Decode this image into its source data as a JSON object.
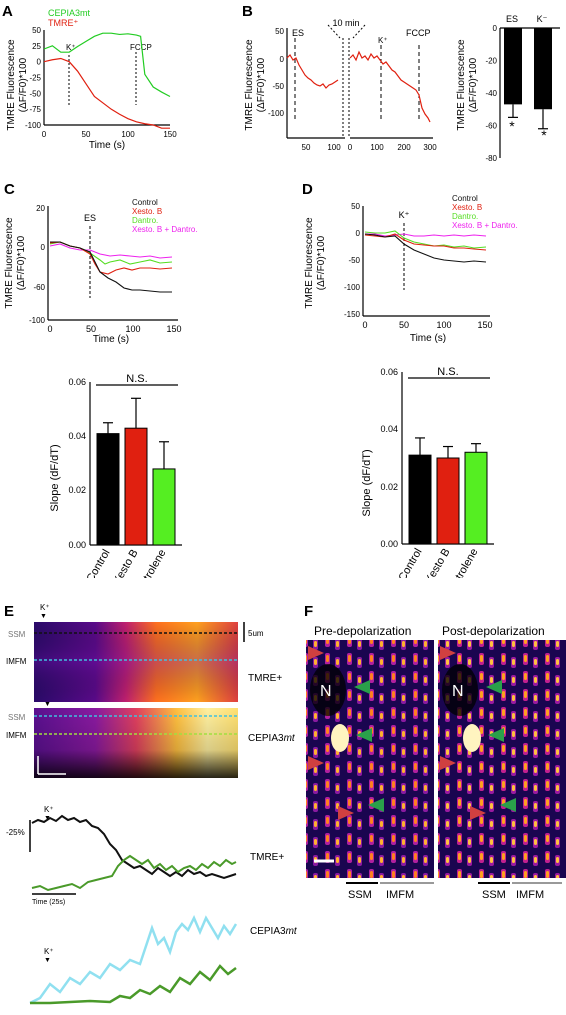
{
  "panels": {
    "A": {
      "letter": "A",
      "ylabel": [
        "TMRE Fluorescence",
        "(ΔF/F0)*100"
      ],
      "xlabel": "Time (s)",
      "xticks": [
        "0",
        "50",
        "100",
        "150"
      ],
      "yticks": [
        "50",
        "25",
        "0",
        "-25",
        "-50",
        "-75",
        "-100"
      ],
      "legend": [
        {
          "name": "CEPIA3mt",
          "color": "#22cc22"
        },
        {
          "name": "TMRE⁺",
          "color": "#e02010"
        }
      ],
      "markers": [
        "K⁺",
        "FCCP"
      ]
    },
    "B": {
      "letter": "B",
      "ylabel": [
        "TMRE Fluorescence",
        "(ΔF/F0)*100"
      ],
      "xticks_left": [
        "50",
        "100"
      ],
      "xticks_right": [
        "0",
        "100",
        "200",
        "300"
      ],
      "yticks": [
        "50",
        "0",
        "-50",
        "-100"
      ],
      "break_label": "10 min",
      "markers": [
        "ES",
        "K⁺",
        "FCCP"
      ],
      "bar": {
        "ylabel": [
          "TMRE Fluorescence",
          "(ΔF/F0)*100"
        ],
        "categories": [
          "ES",
          "K⁻"
        ],
        "yticks": [
          "0",
          "-20",
          "-40",
          "-60",
          "-80"
        ],
        "star": "*"
      }
    },
    "C": {
      "letter": "C",
      "ylabel": [
        "TMRE Fluorescence",
        "(ΔF/F0)*100"
      ],
      "xlabel": "Time (s)",
      "xticks": [
        "0",
        "50",
        "100",
        "150"
      ],
      "yticks": [
        "20",
        "0",
        "-60",
        "-100"
      ],
      "marker": "ES",
      "legend": [
        {
          "name": "Control",
          "color": "#111111"
        },
        {
          "name": "Xesto. B",
          "color": "#e02010"
        },
        {
          "name": "Dantro.",
          "color": "#55dd22"
        },
        {
          "name": "Xesto. B + Dantro.",
          "color": "#ee22ee"
        }
      ],
      "bar": {
        "ylabel": "Slope (dF/dT)",
        "yticks": [
          "0.06",
          "0.04",
          "0.02",
          "0.00"
        ],
        "categories": [
          "Control",
          "Xesto B",
          "Dantrolene"
        ],
        "ns": "N.S."
      }
    },
    "D": {
      "letter": "D",
      "ylabel": [
        "TMRE Fluorescence",
        "(ΔF/F0)*100"
      ],
      "xlabel": "Time (s)",
      "xticks": [
        "0",
        "50",
        "100",
        "150"
      ],
      "yticks": [
        "50",
        "0",
        "-50",
        "-100",
        "-150"
      ],
      "marker": "K⁺",
      "legend": [
        {
          "name": "Control",
          "color": "#111111"
        },
        {
          "name": "Xesto. B",
          "color": "#e02010"
        },
        {
          "name": "Dantro.",
          "color": "#55dd22"
        },
        {
          "name": "Xesto. B + Dantro.",
          "color": "#ee22ee"
        }
      ],
      "bar": {
        "ylabel": "Slope (dF/dT)",
        "yticks": [
          "0.06",
          "0.04",
          "0.02",
          "0.00"
        ],
        "categories": [
          "Control",
          "Xesto B",
          "Dantrolene"
        ],
        "ns": "N.S."
      }
    },
    "E": {
      "letter": "E",
      "k_label": "K⁺",
      "ssm": "SSM",
      "imfm": "IMFM",
      "scale": "5um",
      "tmre": "TMRE+",
      "cepia_prefix": "CEPIA3",
      "cepia_suffix": "mt",
      "pct": "-25%",
      "time": "Time (25s)"
    },
    "F": {
      "letter": "F",
      "pre": "Pre-depolarization",
      "post": "Post-depolarization",
      "n": "N",
      "ssm": "SSM",
      "imfm": "IMFM"
    }
  },
  "chart_data": [
    {
      "type": "line",
      "panel": "A",
      "xlabel": "Time (s)",
      "ylabel": "TMRE Fluorescence (ΔF/F0)*100",
      "xlim": [
        0,
        150
      ],
      "ylim": [
        -100,
        50
      ],
      "series": [
        {
          "name": "CEPIA3mt",
          "x": [
            0,
            10,
            20,
            30,
            40,
            50,
            60,
            70,
            80,
            90,
            100,
            110,
            115,
            120,
            130,
            140,
            150
          ],
          "y": [
            20,
            25,
            15,
            15,
            24,
            32,
            40,
            45,
            45,
            43,
            44,
            42,
            40,
            -20,
            -40,
            -48,
            -55
          ]
        },
        {
          "name": "TMRE⁺",
          "x": [
            0,
            10,
            20,
            30,
            40,
            50,
            60,
            70,
            80,
            90,
            100,
            110,
            120,
            130,
            140,
            150
          ],
          "y": [
            0,
            3,
            5,
            0,
            -15,
            -35,
            -55,
            -65,
            -75,
            -83,
            -90,
            -95,
            -98,
            -100,
            -105,
            -105
          ]
        }
      ]
    },
    {
      "type": "bar",
      "panel": "B",
      "ylabel": "TMRE Fluorescence (ΔF/F0)*100",
      "categories": [
        "ES",
        "K⁻"
      ],
      "values": [
        -47,
        -50
      ],
      "errors": [
        8,
        12
      ],
      "ylim": [
        -80,
        0
      ]
    },
    {
      "type": "bar",
      "panel": "C",
      "ylabel": "Slope (dF/dT)",
      "categories": [
        "Control",
        "Xesto B",
        "Dantrolene"
      ],
      "values": [
        0.041,
        0.043,
        0.028
      ],
      "errors": [
        0.004,
        0.011,
        0.01
      ],
      "ylim": [
        0,
        0.06
      ]
    },
    {
      "type": "bar",
      "panel": "D",
      "ylabel": "Slope (dF/dT)",
      "categories": [
        "Control",
        "Xesto B",
        "Dantrolene"
      ],
      "values": [
        0.031,
        0.03,
        0.032
      ],
      "errors": [
        0.006,
        0.004,
        0.003
      ],
      "ylim": [
        0,
        0.06
      ]
    }
  ]
}
